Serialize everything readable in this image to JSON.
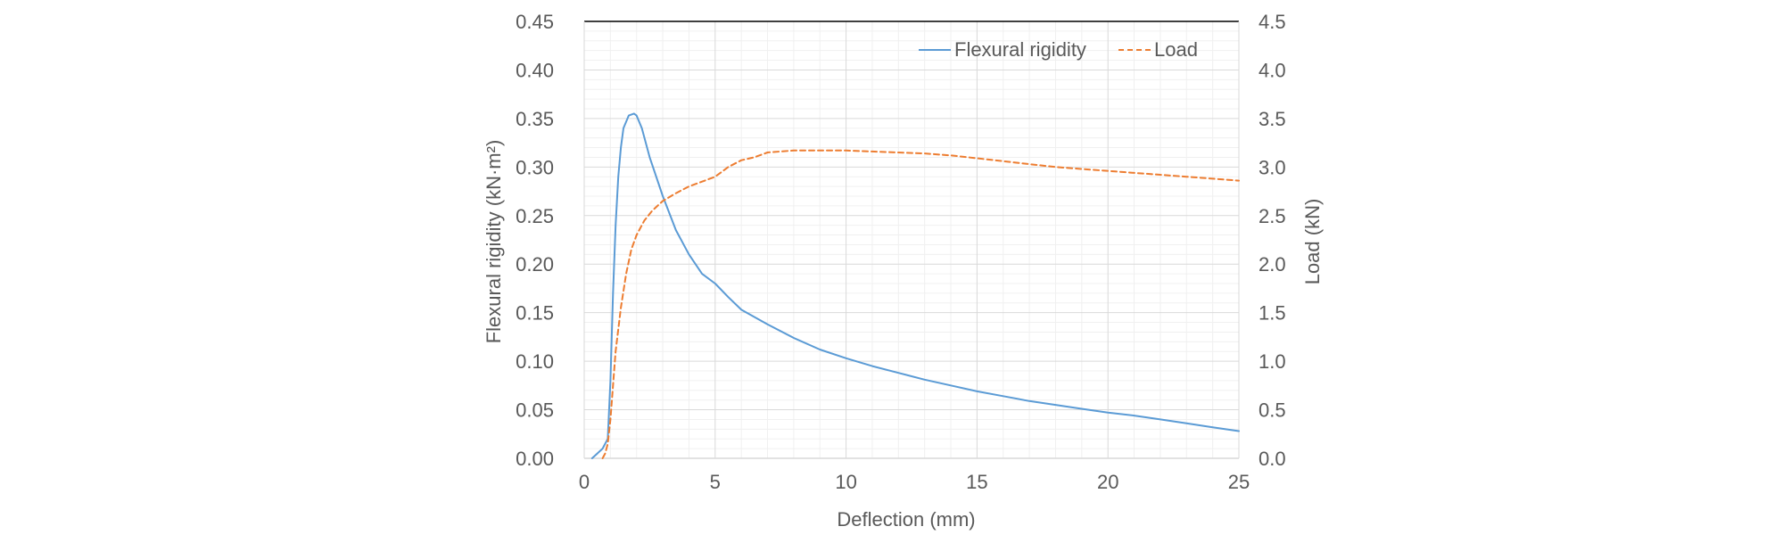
{
  "chart_data": {
    "type": "line",
    "title": "",
    "xlabel": "Deflection (mm)",
    "ylabel_left": "Flexural rigidity (kN·m²)",
    "ylabel_right": "Load (kN)",
    "xlim": [
      0,
      25
    ],
    "ylim_left": [
      0,
      0.45
    ],
    "ylim_right": [
      0,
      4.5
    ],
    "x_ticks": [
      "0",
      "5",
      "10",
      "15",
      "20",
      "25"
    ],
    "y_left_ticks": [
      "0.00",
      "0.05",
      "0.10",
      "0.15",
      "0.20",
      "0.25",
      "0.30",
      "0.35",
      "0.40",
      "0.45"
    ],
    "y_right_ticks": [
      "0.0",
      "0.5",
      "1.0",
      "1.5",
      "2.0",
      "2.5",
      "3.0",
      "3.5",
      "4.0",
      "4.5"
    ],
    "grid": true,
    "legend_position": "top-right",
    "colors": {
      "flexural": "#5b9bd5",
      "load": "#ed7d31",
      "axis": "#595959",
      "grid": "#d9d9d9",
      "minor_grid": "#f0f0f0"
    },
    "series": [
      {
        "name": "Flexural rigidity",
        "axis": "left",
        "style": "solid",
        "x": [
          0.3,
          0.5,
          0.7,
          0.9,
          1.0,
          1.1,
          1.2,
          1.3,
          1.4,
          1.5,
          1.7,
          1.9,
          2.0,
          2.2,
          2.5,
          3.0,
          3.5,
          4.0,
          4.5,
          5.0,
          5.5,
          6.0,
          7.0,
          8.0,
          9.0,
          10.0,
          11.0,
          12.0,
          13.0,
          14.0,
          15.0,
          16.0,
          17.0,
          18.0,
          19.0,
          20.0,
          21.0,
          22.0,
          23.0,
          24.0,
          25.0
        ],
        "y": [
          0.0,
          0.005,
          0.01,
          0.02,
          0.08,
          0.17,
          0.24,
          0.29,
          0.32,
          0.34,
          0.353,
          0.355,
          0.353,
          0.34,
          0.31,
          0.27,
          0.235,
          0.21,
          0.19,
          0.18,
          0.166,
          0.153,
          0.138,
          0.124,
          0.112,
          0.103,
          0.095,
          0.088,
          0.081,
          0.075,
          0.069,
          0.064,
          0.059,
          0.055,
          0.051,
          0.047,
          0.044,
          0.04,
          0.036,
          0.032,
          0.028
        ]
      },
      {
        "name": "Load",
        "axis": "right",
        "style": "dashed",
        "x": [
          0.7,
          0.8,
          0.9,
          1.0,
          1.1,
          1.2,
          1.4,
          1.6,
          1.8,
          2.0,
          2.3,
          2.6,
          3.0,
          3.5,
          4.0,
          4.5,
          5.0,
          5.5,
          6.0,
          6.5,
          7.0,
          8.0,
          9.0,
          10.0,
          11.0,
          12.0,
          13.0,
          14.0,
          15.0,
          16.0,
          17.0,
          18.0,
          19.0,
          20.0,
          21.0,
          22.0,
          23.0,
          24.0,
          25.0
        ],
        "y": [
          0.0,
          0.05,
          0.15,
          0.4,
          0.75,
          1.1,
          1.55,
          1.9,
          2.15,
          2.3,
          2.45,
          2.55,
          2.65,
          2.73,
          2.8,
          2.85,
          2.9,
          3.0,
          3.07,
          3.1,
          3.15,
          3.17,
          3.17,
          3.17,
          3.16,
          3.15,
          3.14,
          3.12,
          3.09,
          3.06,
          3.03,
          3.0,
          2.98,
          2.96,
          2.94,
          2.92,
          2.9,
          2.88,
          2.86
        ]
      }
    ]
  }
}
